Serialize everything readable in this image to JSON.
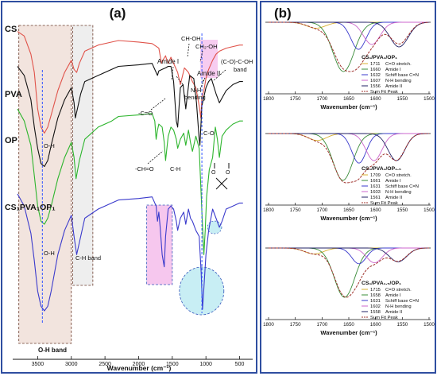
{
  "colors": {
    "frame": "#2f4ea0",
    "cs": "#e0534a",
    "pva": "#111111",
    "op": "#2db52d",
    "blend": "#3b3bcc",
    "sum": "#a0332e",
    "c1711": "#d8b030",
    "amide_i": "#3a8c3a",
    "schiff": "#3a3acc",
    "nh": "#cc66cc",
    "amide_ii": "#222266",
    "oh_band_fill": "#f2e4de",
    "ch_band_fill": "#eeeeee",
    "pink_fill": "#f6c7ee",
    "cyan_fill": "#c8eef4",
    "dash_blue": "#3355ff"
  },
  "panel_a": {
    "label": "(a)",
    "xlabel": "Wavenumber (cm⁻¹)",
    "x_ticks": [
      "3500",
      "3000",
      "2500",
      "2000",
      "1500",
      "1000",
      "500"
    ],
    "sample_labels": {
      "cs": "CS",
      "pva": "PVA",
      "op": "OP",
      "blend": "CS₁PVA₁OP₁"
    },
    "annotations": {
      "amide_i": "Amide I",
      "ch_oh": "CH-OH",
      "ch2_oh": "CH₂-OH",
      "amide_ii": "Amide II",
      "c_o_c_oh_1": "(C-O)-C-OH",
      "c_o_c_oh_2": "band",
      "nh_1": "N-H",
      "nh_2": "bending",
      "c_eq_o": "-C=O",
      "c_o": "C-O",
      "ch_eq_o": "-CH=O",
      "c_h": "C-H",
      "o_h_1": "O-H",
      "o_h_2": "O-H",
      "ch_band": "C-H band",
      "oh_band": "O-H band",
      "o_left": "O",
      "o_right": "O"
    }
  },
  "panel_b": {
    "label": "(b)",
    "xlabel": "Wavenumber (cm⁻¹)",
    "x_ticks": [
      "1800",
      "1750",
      "1700",
      "1650",
      "1600",
      "1550",
      "1500"
    ],
    "insets": [
      {
        "title": "CS₁/PVA₁/OP₁",
        "legend": [
          {
            "value": "1711",
            "label": "C=O stretch."
          },
          {
            "value": "1660",
            "label": "Amide I"
          },
          {
            "value": "1632",
            "label": "Schiff base C=N"
          },
          {
            "value": "1607",
            "label": "N-H bending"
          },
          {
            "value": "1556",
            "label": "Amide II"
          },
          {
            "value": "",
            "label": "Sum Fit Peak"
          }
        ]
      },
      {
        "title": "CS₁/PVA₁/OP₁.₅",
        "legend": [
          {
            "value": "1709",
            "label": "C=O stretch."
          },
          {
            "value": "1661",
            "label": "Amide I"
          },
          {
            "value": "1631",
            "label": "Schiff base C=N"
          },
          {
            "value": "1603",
            "label": "N-H bending"
          },
          {
            "value": "1561",
            "label": "Amide II"
          },
          {
            "value": "",
            "label": "Sum Fit Peak"
          }
        ]
      },
      {
        "title": "CS₁/PVA₁.₅/OP₁",
        "legend": [
          {
            "value": "1715",
            "label": "C=O stretch."
          },
          {
            "value": "1658",
            "label": "Amide I"
          },
          {
            "value": "1631",
            "label": "Schiff base C=N"
          },
          {
            "value": "1602",
            "label": "N-H bending"
          },
          {
            "value": "1558",
            "label": "Amide II"
          },
          {
            "value": "",
            "label": "Sum Fit Peak"
          }
        ]
      }
    ]
  },
  "chart_data": [
    {
      "type": "line",
      "panel": "a",
      "xlabel": "Wavenumber (cm⁻¹)",
      "ylabel": "",
      "xlim": [
        3800,
        400
      ],
      "x_reversed": true,
      "ylim": [
        0,
        10
      ],
      "grid": false,
      "highlighted_regions": [
        {
          "name": "O-H band",
          "x": [
            3780,
            3000
          ]
        },
        {
          "name": "C-H band",
          "x": [
            2980,
            2680
          ]
        },
        {
          "x": [
            1880,
            1500
          ]
        },
        {
          "x": [
            1180,
            900
          ]
        }
      ],
      "series": [
        {
          "name": "CS",
          "x": [
            3800,
            3700,
            3600,
            3550,
            3500,
            3450,
            3400,
            3350,
            3300,
            3200,
            3100,
            3000,
            2960,
            2920,
            2880,
            2800,
            2600,
            2400,
            2300,
            2000,
            1800,
            1700,
            1660,
            1640,
            1600,
            1580,
            1560,
            1520,
            1480,
            1420,
            1380,
            1320,
            1260,
            1200,
            1150,
            1100,
            1075,
            1060,
            1030,
            1000,
            960,
            900,
            850,
            800,
            700,
            600,
            500,
            450
          ],
          "y": [
            9.75,
            9.6,
            9.0,
            8.4,
            7.2,
            6.6,
            6.4,
            6.6,
            7.0,
            7.8,
            8.4,
            8.8,
            8.5,
            8.4,
            8.7,
            9.1,
            9.3,
            9.4,
            9.45,
            9.4,
            9.35,
            9.2,
            8.7,
            8.8,
            8.95,
            8.8,
            8.7,
            8.9,
            8.7,
            8.4,
            8.0,
            8.55,
            8.4,
            8.1,
            7.9,
            7.3,
            6.9,
            7.6,
            7.8,
            8.2,
            8.5,
            8.8,
            9.0,
            9.1,
            9.2,
            9.25,
            9.3,
            9.3
          ]
        },
        {
          "name": "PVA",
          "x": [
            3800,
            3700,
            3600,
            3550,
            3500,
            3450,
            3400,
            3350,
            3300,
            3200,
            3100,
            3000,
            2960,
            2940,
            2910,
            2860,
            2800,
            2600,
            2400,
            2300,
            2000,
            1800,
            1720,
            1700,
            1650,
            1600,
            1560,
            1520,
            1480,
            1440,
            1420,
            1380,
            1340,
            1300,
            1240,
            1180,
            1140,
            1100,
            1090,
            1060,
            1000,
            960,
            920,
            850,
            800,
            700,
            600,
            500,
            450
          ],
          "y": [
            8.6,
            8.3,
            7.5,
            6.6,
            5.9,
            5.4,
            5.3,
            5.5,
            6.0,
            6.9,
            7.5,
            7.9,
            7.4,
            6.9,
            7.2,
            7.7,
            8.1,
            8.3,
            8.5,
            8.6,
            8.65,
            8.7,
            8.3,
            8.45,
            8.5,
            8.55,
            8.6,
            8.6,
            8.1,
            6.8,
            6.6,
            7.9,
            8.0,
            7.2,
            8.3,
            8.2,
            7.4,
            6.2,
            6.0,
            7.3,
            7.9,
            8.1,
            8.2,
            7.7,
            7.4,
            7.8,
            8.0,
            8.1,
            8.1
          ]
        },
        {
          "name": "OP",
          "x": [
            3800,
            3700,
            3600,
            3550,
            3500,
            3450,
            3400,
            3350,
            3300,
            3200,
            3100,
            3000,
            2960,
            2930,
            2880,
            2800,
            2600,
            2400,
            2300,
            2000,
            1800,
            1760,
            1740,
            1720,
            1700,
            1650,
            1620,
            1600,
            1560,
            1520,
            1480,
            1440,
            1420,
            1380,
            1330,
            1300,
            1260,
            1230,
            1200,
            1150,
            1100,
            1060,
            1030,
            1010,
            990,
            950,
            900,
            880,
            860,
            830,
            800,
            760,
            700,
            650,
            600,
            500,
            450
          ],
          "y": [
            7.2,
            6.8,
            6.0,
            5.0,
            4.0,
            3.5,
            3.4,
            3.6,
            4.0,
            4.9,
            5.6,
            6.1,
            5.6,
            4.9,
            5.5,
            6.2,
            6.6,
            6.8,
            6.95,
            7.0,
            7.05,
            6.8,
            6.2,
            6.5,
            6.7,
            6.6,
            6.1,
            5.5,
            6.3,
            6.6,
            6.5,
            6.2,
            5.9,
            6.2,
            6.4,
            6.0,
            6.5,
            6.1,
            5.8,
            6.3,
            5.9,
            3.8,
            2.4,
            3.2,
            4.3,
            5.2,
            5.6,
            6.1,
            6.6,
            6.2,
            5.6,
            6.3,
            6.5,
            6.6,
            6.7,
            6.8,
            6.8
          ]
        },
        {
          "name": "CS₁PVA₁OP₁",
          "x": [
            3800,
            3700,
            3600,
            3550,
            3500,
            3450,
            3400,
            3350,
            3300,
            3200,
            3100,
            3000,
            2960,
            2920,
            2880,
            2800,
            2600,
            2400,
            2300,
            2000,
            1800,
            1740,
            1720,
            1700,
            1680,
            1650,
            1620,
            1600,
            1560,
            1520,
            1480,
            1440,
            1420,
            1380,
            1330,
            1300,
            1260,
            1230,
            1200,
            1150,
            1100,
            1070,
            1050,
            1030,
            1000,
            960,
            900,
            850,
            800,
            760,
            700,
            600,
            500,
            450
          ],
          "y": [
            4.4,
            4.0,
            3.1,
            2.2,
            1.2,
            0.7,
            0.55,
            0.7,
            1.2,
            2.4,
            3.2,
            3.7,
            3.0,
            2.4,
            2.8,
            3.6,
            3.9,
            4.1,
            4.2,
            4.25,
            4.3,
            4.0,
            3.5,
            3.8,
            3.3,
            2.4,
            2.0,
            3.0,
            3.9,
            4.0,
            3.9,
            3.5,
            3.2,
            3.6,
            3.8,
            3.4,
            3.9,
            3.6,
            3.5,
            3.2,
            3.0,
            1.8,
            0.6,
            1.3,
            2.4,
            3.2,
            3.9,
            3.6,
            3.3,
            3.5,
            3.9,
            4.0,
            4.1,
            4.1
          ]
        }
      ]
    },
    {
      "type": "line",
      "panel": "b",
      "title": "CS₁/PVA₁/OP₁",
      "xlabel": "Wavenumber (cm⁻¹)",
      "xlim": [
        1800,
        1500
      ],
      "x_reversed": true,
      "series": [
        {
          "name": "C=O stretch.",
          "center": 1711,
          "width": 25,
          "height": 0.12
        },
        {
          "name": "Amide I",
          "center": 1660,
          "width": 28,
          "height": 1.0
        },
        {
          "name": "Schiff base C=N",
          "center": 1632,
          "width": 20,
          "height": 0.55
        },
        {
          "name": "N-H bending",
          "center": 1607,
          "width": 22,
          "height": 0.45
        },
        {
          "name": "Amide II",
          "center": 1556,
          "width": 24,
          "height": 0.5
        },
        {
          "name": "Sum Fit Peak",
          "type": "sum"
        }
      ]
    },
    {
      "type": "line",
      "panel": "b",
      "title": "CS₁/PVA₁/OP₁.₅",
      "xlabel": "Wavenumber (cm⁻¹)",
      "xlim": [
        1800,
        1500
      ],
      "x_reversed": true,
      "series": [
        {
          "name": "C=O stretch.",
          "center": 1709,
          "width": 24,
          "height": 0.14
        },
        {
          "name": "Amide I",
          "center": 1661,
          "width": 26,
          "height": 0.95
        },
        {
          "name": "Schiff base C=N",
          "center": 1631,
          "width": 19,
          "height": 0.6
        },
        {
          "name": "N-H bending",
          "center": 1603,
          "width": 21,
          "height": 0.55
        },
        {
          "name": "Amide II",
          "center": 1561,
          "width": 22,
          "height": 0.55
        },
        {
          "name": "Sum Fit Peak",
          "type": "sum"
        }
      ]
    },
    {
      "type": "line",
      "panel": "b",
      "title": "CS₁/PVA₁.₅/OP₁",
      "xlabel": "Wavenumber (cm⁻¹)",
      "xlim": [
        1800,
        1500
      ],
      "x_reversed": true,
      "series": [
        {
          "name": "C=O stretch.",
          "center": 1715,
          "width": 25,
          "height": 0.12
        },
        {
          "name": "Amide I",
          "center": 1658,
          "width": 27,
          "height": 1.0
        },
        {
          "name": "Schiff base C=N",
          "center": 1631,
          "width": 19,
          "height": 0.32
        },
        {
          "name": "N-H bending",
          "center": 1602,
          "width": 21,
          "height": 0.3
        },
        {
          "name": "Amide II",
          "center": 1558,
          "width": 23,
          "height": 0.28
        },
        {
          "name": "Sum Fit Peak",
          "type": "sum"
        }
      ]
    }
  ]
}
